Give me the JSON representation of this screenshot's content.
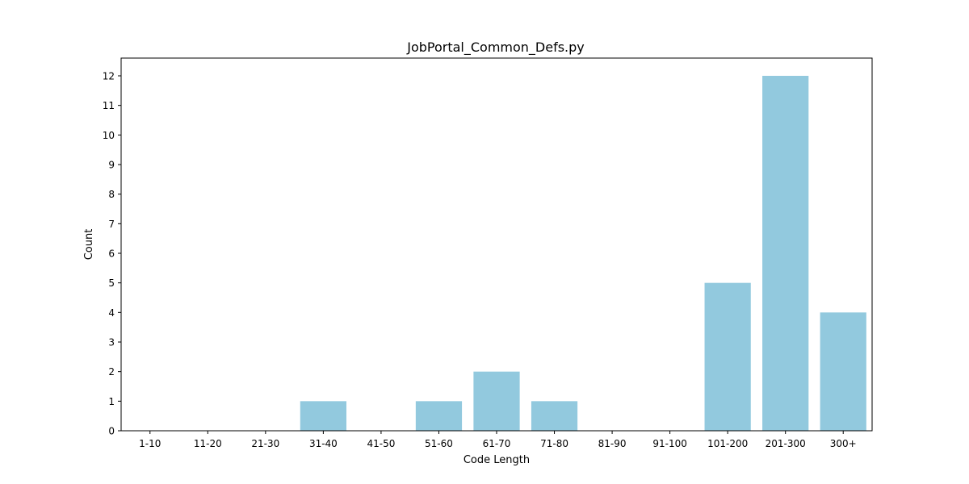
{
  "chart_data": {
    "type": "bar",
    "title": "JobPortal_Common_Defs.py",
    "xlabel": "Code Length",
    "ylabel": "Count",
    "categories": [
      "1-10",
      "11-20",
      "21-30",
      "31-40",
      "41-50",
      "51-60",
      "61-70",
      "71-80",
      "81-90",
      "91-100",
      "101-200",
      "201-300",
      "300+"
    ],
    "values": [
      0,
      0,
      0,
      1,
      0,
      1,
      2,
      1,
      0,
      0,
      5,
      12,
      4
    ],
    "ylim": [
      0,
      12.6
    ],
    "yticks": [
      0,
      1,
      2,
      3,
      4,
      5,
      6,
      7,
      8,
      9,
      10,
      11,
      12
    ],
    "bar_color": "#92c9de",
    "grid": false,
    "legend": "none"
  }
}
